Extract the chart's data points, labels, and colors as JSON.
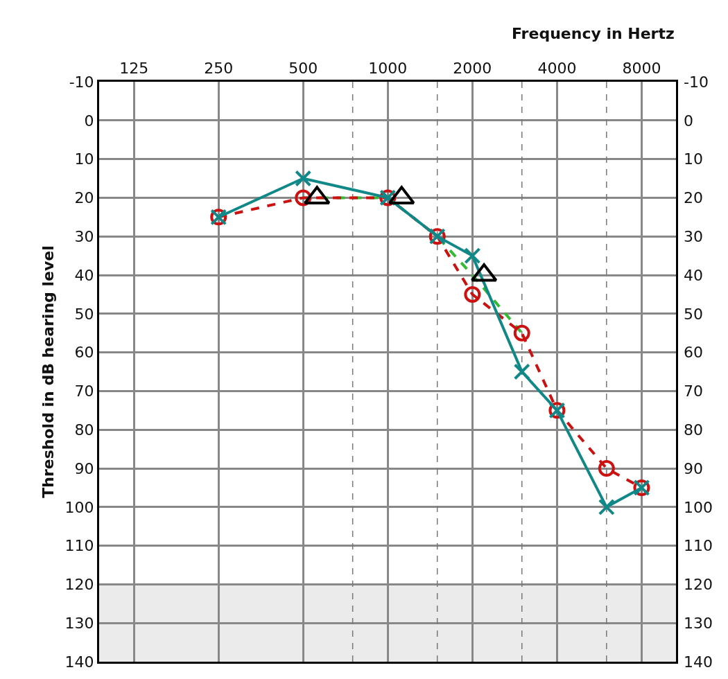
{
  "chart_data": {
    "type": "line",
    "xlabel": "Frequency in Hertz",
    "ylabel": "Threshold in dB hearing level",
    "log": "x",
    "xlim": [
      94,
      10600
    ],
    "xticks": [
      125,
      250,
      500,
      1000,
      2000,
      4000,
      8000
    ],
    "ylim": [
      140,
      -10
    ],
    "yticks": [
      -10,
      0,
      10,
      20,
      30,
      40,
      50,
      60,
      70,
      80,
      90,
      100,
      110,
      120,
      130,
      140
    ],
    "y2lim": [
      140,
      -10
    ],
    "y2ticks": [
      -10,
      0,
      10,
      20,
      30,
      40,
      50,
      60,
      70,
      80,
      90,
      100,
      110,
      120,
      130,
      140
    ],
    "grid": true,
    "legend": false,
    "bands": [
      {
        "axis": "y",
        "from": 120,
        "to": 140,
        "color": "#ebebeb"
      }
    ],
    "ref_lines": [
      {
        "axis": "x",
        "value": 750,
        "color": "#777777",
        "line_style": "dashed"
      },
      {
        "axis": "x",
        "value": 1500,
        "color": "#777777",
        "line_style": "dashed"
      },
      {
        "axis": "x",
        "value": 3000,
        "color": "#777777",
        "line_style": "dashed"
      },
      {
        "axis": "x",
        "value": 6000,
        "color": "#777777",
        "line_style": "dashed"
      }
    ],
    "series": [
      {
        "color": "#33bb33",
        "line_style": "dashed",
        "marker": "none",
        "x": [
          500,
          1000,
          1500,
          2000,
          3000
        ],
        "values": [
          20,
          20,
          30,
          40,
          55
        ]
      },
      {
        "color": "#cc1111",
        "line_style": "dashed",
        "marker": "circle",
        "x": [
          250,
          500,
          1000,
          1500,
          2000,
          3000,
          4000,
          6000,
          8000
        ],
        "values": [
          25,
          20,
          20,
          30,
          45,
          55,
          75,
          90,
          95
        ]
      },
      {
        "color": "#118888",
        "line_style": "solid",
        "marker": "cross",
        "x": [
          250,
          500,
          1000,
          1500,
          2000,
          3000,
          4000,
          6000,
          8000
        ],
        "values": [
          25,
          15,
          20,
          30,
          35,
          65,
          75,
          100,
          95
        ]
      },
      {
        "type": "scatter",
        "color": "#000000",
        "marker": "triangle",
        "x": [
          560,
          1120,
          2200
        ],
        "values": [
          20,
          20,
          40
        ]
      }
    ]
  }
}
